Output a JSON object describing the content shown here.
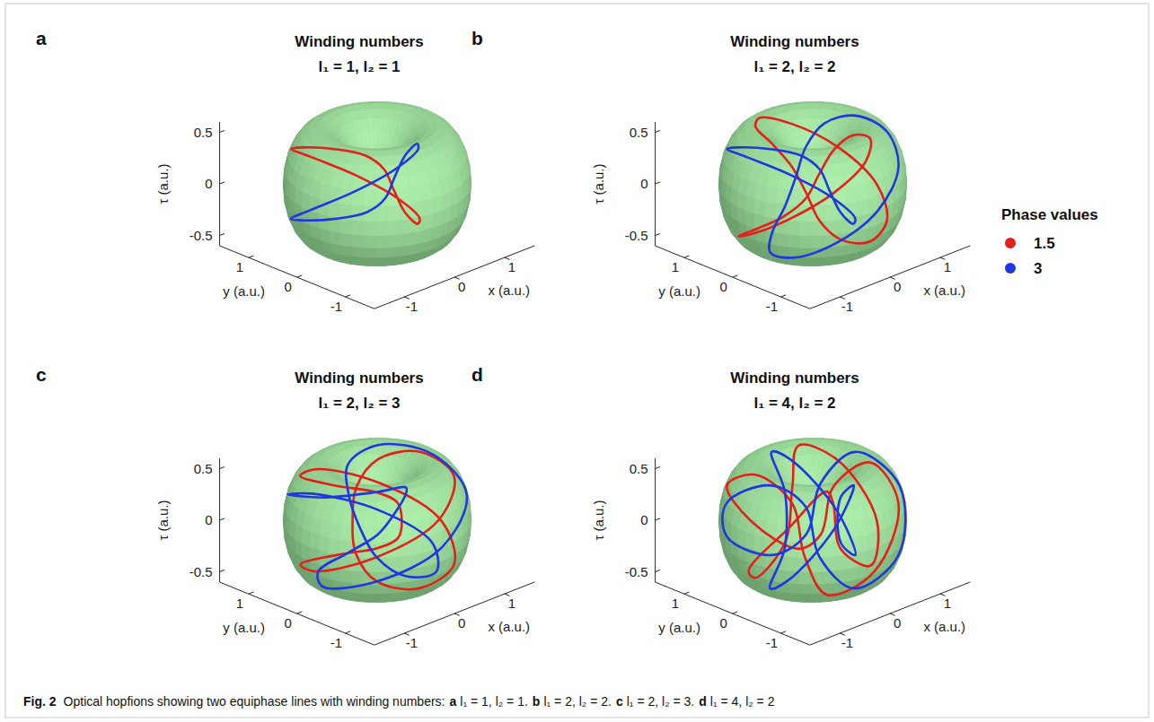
{
  "chart_data": [
    {
      "type": "line3d",
      "panel": "a",
      "title": "Winding numbers",
      "subtitle": "l₁ = 1, l₂ = 1",
      "x_label": "x (a.u.)",
      "y_label": "y (a.u.)",
      "z_label": "τ (a.u.)",
      "xlim": [
        -1.6,
        1.6
      ],
      "xticks": [
        -1,
        0,
        1
      ],
      "ylim": [
        -1.6,
        1.6
      ],
      "yticks": [
        -1,
        0,
        1
      ],
      "zlim": [
        -0.6,
        0.6
      ],
      "zticks": [
        -0.5,
        0,
        0.5
      ],
      "series": [
        {
          "name": "1.5",
          "color": "#e3201b",
          "x": [
            0.85,
            0.95,
            0.64,
            0,
            -0.64,
            -0.95,
            -0.85,
            -0.52,
            -0.21,
            0,
            0.21,
            0.52
          ],
          "y": [
            0,
            0.55,
            1.11,
            1.35,
            1.11,
            0.55,
            0,
            -0.3,
            -0.36,
            -0.35,
            -0.36,
            -0.3
          ],
          "values": [
            -0.5,
            -0.43,
            -0.25,
            0,
            0.25,
            0.43,
            0.5,
            0.43,
            0.25,
            0,
            -0.25,
            -0.43
          ]
        },
        {
          "name": "3",
          "color": "#1f37e0",
          "x": [
            0.35,
            0.36,
            0.3,
            0,
            -0.55,
            -1.11,
            -1.35,
            -1.11,
            -0.55,
            0,
            0.3,
            0.36
          ],
          "y": [
            0,
            0.21,
            0.52,
            0.85,
            0.95,
            0.64,
            0,
            -0.64,
            -0.95,
            -0.85,
            -0.52,
            -0.21
          ],
          "values": [
            0,
            -0.25,
            -0.43,
            -0.5,
            -0.43,
            -0.25,
            0,
            0.25,
            0.43,
            0.5,
            0.43,
            0.25
          ]
        }
      ]
    },
    {
      "type": "line3d",
      "panel": "b",
      "title": "Winding numbers",
      "subtitle": "l₁ = 2, l₂ = 2",
      "x_label": "x (a.u.)",
      "y_label": "y (a.u.)",
      "z_label": "τ (a.u.)",
      "xlim": [
        -1.6,
        1.6
      ],
      "xticks": [
        -1,
        0,
        1
      ],
      "ylim": [
        -1.6,
        1.6
      ],
      "yticks": [
        -1,
        0,
        1
      ],
      "zlim": [
        -0.6,
        0.6
      ],
      "zticks": [
        -0.5,
        0,
        0.5
      ],
      "legend": "right",
      "legend_title": "Phase values",
      "series": [
        {
          "name": "1.5",
          "color": "#e3201b",
          "x": [
            1.28,
            1.17,
            0.64,
            0,
            -0.43,
            -0.52,
            -0.42,
            -0.3,
            -0.21,
            0,
            0.43,
            0.95,
            null,
            0.42,
            0.3,
            0.21,
            0,
            -0.43,
            -0.95,
            -1.28,
            -1.17,
            -0.64,
            0,
            0.43,
            0.52
          ],
          "y": [
            0,
            0.68,
            1.11,
            1.1,
            0.74,
            0.3,
            0,
            -0.18,
            -0.36,
            -0.6,
            -0.74,
            -0.55,
            null,
            0,
            0.18,
            0.36,
            0.6,
            0.74,
            0.55,
            0,
            -0.68,
            -1.11,
            -1.1,
            -0.74,
            -0.3
          ],
          "values": [
            -0.25,
            0,
            0.25,
            0.43,
            0.5,
            0.43,
            0.25,
            0,
            -0.25,
            -0.43,
            -0.5,
            -0.43,
            null,
            0.25,
            0,
            -0.25,
            -0.43,
            -0.5,
            -0.43,
            -0.25,
            0,
            0.25,
            0.43,
            0.5,
            0.43
          ]
        },
        {
          "name": "3",
          "color": "#1f37e0",
          "x": [
            0.85,
            0.95,
            0.64,
            0,
            -0.64,
            -0.95,
            -0.85,
            -0.52,
            -0.21,
            0,
            0.21,
            0.52,
            null,
            0.85,
            0.52,
            0.21,
            0,
            -0.21,
            -0.52,
            -0.85,
            -0.95,
            -0.64,
            0,
            0.64,
            0.95
          ],
          "y": [
            0,
            0.55,
            1.11,
            1.35,
            1.11,
            0.55,
            0,
            -0.3,
            -0.36,
            -0.35,
            -0.36,
            -0.3,
            null,
            0,
            0.3,
            0.36,
            0.35,
            0.36,
            0.3,
            0,
            -0.55,
            -1.11,
            -1.35,
            -1.11,
            -0.55
          ],
          "values": [
            -0.5,
            -0.43,
            -0.25,
            0,
            0.25,
            0.43,
            0.5,
            0.43,
            0.25,
            0,
            -0.25,
            -0.43,
            null,
            0.5,
            0.43,
            0.25,
            0,
            -0.25,
            -0.43,
            -0.5,
            -0.43,
            -0.25,
            0,
            0.25,
            0.43
          ]
        }
      ]
    },
    {
      "type": "line3d",
      "panel": "c",
      "title": "Winding numbers",
      "subtitle": "l₁ = 2, l₂ = 3",
      "x_label": "x (a.u.)",
      "y_label": "y (a.u.)",
      "z_label": "τ (a.u.)",
      "xlim": [
        -1.6,
        1.6
      ],
      "xticks": [
        -1,
        0,
        1
      ],
      "ylim": [
        -1.6,
        1.6
      ],
      "yticks": [
        -1,
        0,
        1
      ],
      "zlim": [
        -0.6,
        0.6
      ],
      "zticks": [
        -0.5,
        0,
        0.5
      ],
      "series": [
        {
          "name": "1.5",
          "color": "#e3201b",
          "x": [
            0.95,
            0,
            -0.78,
            -0.85,
            -0.42,
            0,
            0.25,
            0.42,
            0.42,
            0,
            -0.78,
            -1.28,
            -0.95,
            0,
            0.78,
            0.85,
            0.42,
            0,
            -0.25,
            -0.42,
            -0.42,
            0,
            0.78,
            1.28
          ],
          "y": [
            0.95,
            1.28,
            0.78,
            0,
            -0.42,
            -0.42,
            -0.25,
            0,
            0.42,
            0.85,
            0.78,
            0,
            -0.95,
            -1.28,
            -0.78,
            0,
            0.42,
            0.42,
            0.25,
            0,
            -0.42,
            -0.85,
            -0.78,
            0
          ],
          "values": [
            0,
            0.25,
            0.43,
            0.5,
            0.43,
            0.25,
            0,
            -0.25,
            -0.43,
            -0.5,
            -0.43,
            -0.25,
            0,
            0.25,
            0.43,
            0.5,
            0.43,
            0.25,
            0,
            -0.25,
            -0.43,
            -0.5,
            -0.43,
            -0.25
          ]
        },
        {
          "name": "3",
          "color": "#1f37e0",
          "x": [
            0,
            -0.91,
            -1.1,
            -0.6,
            0,
            0.29,
            0.35,
            0.29,
            0,
            -0.6,
            -1.1,
            -0.91,
            0,
            0.91,
            1.1,
            0.6,
            0,
            -0.29,
            -0.35,
            -0.29,
            0,
            0.6,
            1.1,
            0.91
          ],
          "y": [
            1.35,
            0.91,
            0,
            -0.6,
            -0.6,
            -0.29,
            0,
            0.29,
            0.6,
            0.6,
            0,
            -0.91,
            -1.35,
            -0.91,
            0,
            0.6,
            0.6,
            0.29,
            0,
            -0.29,
            -0.6,
            -0.6,
            0,
            0.91
          ],
          "values": [
            0,
            0.25,
            0.43,
            0.5,
            0.43,
            0.25,
            0,
            -0.25,
            -0.43,
            -0.5,
            -0.43,
            -0.25,
            0,
            0.25,
            0.43,
            0.5,
            0.43,
            0.25,
            0,
            -0.25,
            -0.43,
            -0.5,
            -0.43,
            -0.25
          ]
        }
      ]
    },
    {
      "type": "line3d",
      "panel": "d",
      "title": "Winding numbers",
      "subtitle": "l₁ = 4, l₂ = 2",
      "x_label": "x (a.u.)",
      "y_label": "y (a.u.)",
      "z_label": "τ (a.u.)",
      "xlim": [
        -1.6,
        1.6
      ],
      "xticks": [
        -1,
        0,
        1
      ],
      "ylim": [
        -1.6,
        1.6
      ],
      "yticks": [
        -1,
        0,
        1
      ],
      "zlim": [
        -0.6,
        0.6
      ],
      "zticks": [
        -0.5,
        0,
        0.5
      ],
      "series": [
        {
          "name": "1.5",
          "color": "#e3201b",
          "x": [
            1.28,
            1.11,
            0.43,
            0,
            -0.21,
            -0.74,
            -1.28,
            -1.11,
            -0.43,
            0,
            0.21,
            0.74,
            null,
            0.42,
            0.36,
            0.43,
            0,
            -0.64,
            -0.74,
            -0.42,
            -0.36,
            -0.43,
            0,
            0.64,
            0.74
          ],
          "y": [
            0,
            0.64,
            0.74,
            0.42,
            0.36,
            0.43,
            0,
            -0.64,
            -0.74,
            -0.42,
            -0.36,
            -0.43,
            null,
            0,
            0.21,
            0.74,
            1.28,
            1.11,
            0.43,
            0,
            -0.21,
            -0.74,
            -1.28,
            -1.11,
            -0.43
          ],
          "values": [
            -0.25,
            0.25,
            0.5,
            0.25,
            -0.25,
            -0.5,
            -0.25,
            0.25,
            0.5,
            0.25,
            -0.25,
            -0.5,
            null,
            0.25,
            -0.25,
            -0.5,
            -0.25,
            0.25,
            0.5,
            0.25,
            -0.25,
            -0.5,
            -0.25,
            0.25,
            0.5
          ]
        },
        {
          "name": "3",
          "color": "#1f37e0",
          "x": [
            0.85,
            1.11,
            0.64,
            0,
            -0.21,
            -0.36,
            -0.85,
            -1.11,
            -0.64,
            0,
            0.21,
            0.36,
            null,
            0.85,
            0.36,
            0.21,
            0,
            -0.64,
            -1.11,
            -0.85,
            -0.36,
            -0.21,
            0,
            0.64,
            1.11
          ],
          "y": [
            0,
            0.64,
            1.11,
            0.85,
            0.36,
            0.21,
            0,
            -0.64,
            -1.11,
            -0.85,
            -0.36,
            -0.21,
            null,
            0,
            0.21,
            0.36,
            0.85,
            1.11,
            0.64,
            0,
            -0.21,
            -0.36,
            -0.85,
            -1.11,
            -0.64
          ],
          "values": [
            -0.5,
            -0.25,
            0.25,
            0.5,
            0.25,
            -0.25,
            -0.5,
            -0.25,
            0.25,
            0.5,
            0.25,
            -0.25,
            null,
            0.5,
            0.25,
            -0.25,
            -0.5,
            -0.25,
            0.25,
            0.5,
            0.25,
            -0.25,
            -0.5,
            -0.25,
            0.25
          ]
        }
      ]
    }
  ],
  "caption": {
    "label": "Fig. 2",
    "text": "Optical hopfions showing two equiphase lines with winding numbers:",
    "items": [
      {
        "letter": "a",
        "text": "l₁ = 1, l₂ = 1."
      },
      {
        "letter": "b",
        "text": "l₁ = 2, l₂ = 2."
      },
      {
        "letter": "c",
        "text": "l₁ = 2, l₂ = 3."
      },
      {
        "letter": "d",
        "text": "l₁ = 4, l₂ = 2"
      }
    ]
  }
}
